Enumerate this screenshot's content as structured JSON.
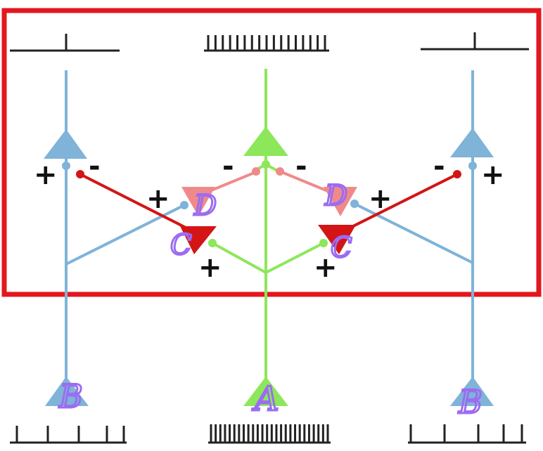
{
  "colors": {
    "frame": "#e3171d",
    "blue": "#7fb3d8",
    "green": "#8de75a",
    "red": "#d31515",
    "pink": "#f08a8a",
    "spike": "#222222",
    "annotation": "#9b6cf2"
  },
  "neurons": {
    "A": "A",
    "B_left": "B",
    "B_right": "B",
    "C_left": "C",
    "C_right": "C",
    "D_left": "D",
    "D_right": "D"
  },
  "signs": {
    "plus": "+",
    "minus": "-"
  },
  "spike_trains": {
    "top_left": 1,
    "top_middle": 17,
    "top_right": 1,
    "bottom_left": 5,
    "bottom_middle": 26,
    "bottom_right": 5
  }
}
